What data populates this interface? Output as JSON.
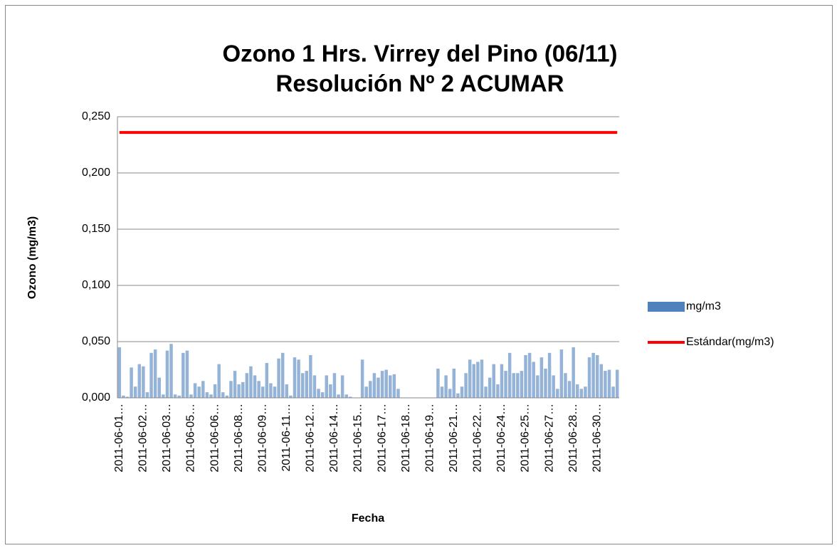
{
  "chart_data": {
    "type": "bar",
    "title": [
      "Ozono 1 Hrs. Virrey del Pino  (06/11)",
      "Resolución Nº 2 ACUMAR"
    ],
    "y_label": "Ozono (mg/m3)",
    "x_label": "Fecha",
    "categories": [
      "2011-06-01…",
      null,
      null,
      null,
      null,
      null,
      "2011-06-02…",
      null,
      null,
      null,
      null,
      null,
      "2011-06-03…",
      null,
      null,
      null,
      null,
      null,
      "2011-06-05…",
      null,
      null,
      null,
      null,
      null,
      "2011-06-06…",
      null,
      null,
      null,
      null,
      null,
      "2011-06-08…",
      null,
      null,
      null,
      null,
      null,
      "2011-06-09…",
      null,
      null,
      null,
      null,
      null,
      "2011-06-11…",
      null,
      null,
      null,
      null,
      null,
      "2011-06-12…",
      null,
      null,
      null,
      null,
      null,
      "2011-06-14…",
      null,
      null,
      null,
      null,
      null,
      "2011-06-15…",
      null,
      null,
      null,
      null,
      null,
      "2011-06-17…",
      null,
      null,
      null,
      null,
      null,
      "2011-06-18…",
      null,
      null,
      null,
      null,
      null,
      "2011-06-19…",
      null,
      null,
      null,
      null,
      null,
      "2011-06-21…",
      null,
      null,
      null,
      null,
      null,
      "2011-06-22…",
      null,
      null,
      null,
      null,
      null,
      "2011-06-24…",
      null,
      null,
      null,
      null,
      null,
      "2011-06-25…",
      null,
      null,
      null,
      null,
      null,
      "2011-06-27…",
      null,
      null,
      null,
      null,
      null,
      "2011-06-28…",
      null,
      null,
      null,
      null,
      null,
      "2011-06-30…",
      null,
      null,
      null,
      null,
      null
    ],
    "series": [
      {
        "name": "mg/m3",
        "type": "bar",
        "color": "#95b3d7",
        "legend_color": "#4f81bd",
        "values": [
          0.045,
          0.002,
          0.001,
          0.027,
          0.01,
          0.03,
          0.028,
          0.005,
          0.04,
          0.043,
          0.018,
          0.003,
          0.042,
          0.048,
          0.003,
          0.002,
          0.04,
          0.042,
          0.003,
          0.013,
          0.01,
          0.015,
          0.005,
          0.003,
          0.012,
          0.03,
          0.005,
          0.002,
          0.015,
          0.024,
          0.012,
          0.014,
          0.022,
          0.028,
          0.02,
          0.015,
          0.01,
          0.031,
          0.013,
          0.01,
          0.035,
          0.04,
          0.012,
          0.002,
          0.036,
          0.034,
          0.022,
          0.024,
          0.038,
          0.02,
          0.008,
          0.005,
          0.02,
          0.012,
          0.022,
          0.003,
          0.02,
          0.003,
          0.001,
          0,
          0,
          0.034,
          0.01,
          0.015,
          0.022,
          0.018,
          0.024,
          0.025,
          0.02,
          0.021,
          0.008,
          0,
          0,
          0,
          0,
          0,
          0,
          0,
          0,
          0,
          0.026,
          0.01,
          0.02,
          0.008,
          0.026,
          0.004,
          0.01,
          0.022,
          0.034,
          0.03,
          0.032,
          0.034,
          0.01,
          0.018,
          0.03,
          0.012,
          0.03,
          0.024,
          0.04,
          0.022,
          0.022,
          0.024,
          0.038,
          0.04,
          0.032,
          0.02,
          0.036,
          0.026,
          0.04,
          0.02,
          0.008,
          0.043,
          0.022,
          0.015,
          0.045,
          0.012,
          0.008,
          0.01,
          0.036,
          0.04,
          0.038,
          0.03,
          0.024,
          0.025,
          0.01,
          0.025
        ]
      },
      {
        "name": "Estándar(mg/m3)",
        "type": "line",
        "color": "#ff0000",
        "values": [
          0.236,
          0.236,
          0.236,
          0.236,
          0.236,
          0.236,
          0.236,
          0.236,
          0.236,
          0.236,
          0.236,
          0.236,
          0.236,
          0.236,
          0.236,
          0.236,
          0.236,
          0.236,
          0.236,
          0.236,
          0.236,
          0.236,
          0.236,
          0.236,
          0.236,
          0.236,
          0.236,
          0.236,
          0.236,
          0.236,
          0.236,
          0.236,
          0.236,
          0.236,
          0.236,
          0.236,
          0.236,
          0.236,
          0.236,
          0.236,
          0.236,
          0.236,
          0.236,
          0.236,
          0.236,
          0.236,
          0.236,
          0.236,
          0.236,
          0.236,
          0.236,
          0.236,
          0.236,
          0.236,
          0.236,
          0.236,
          0.236,
          0.236,
          0.236,
          0.236,
          0.236,
          0.236,
          0.236,
          0.236,
          0.236,
          0.236,
          0.236,
          0.236,
          0.236,
          0.236,
          0.236,
          0.236,
          0.236,
          0.236,
          0.236,
          0.236,
          0.236,
          0.236,
          0.236,
          0.236,
          0.236,
          0.236,
          0.236,
          0.236,
          0.236,
          0.236,
          0.236,
          0.236,
          0.236,
          0.236,
          0.236,
          0.236,
          0.236,
          0.236,
          0.236,
          0.236,
          0.236,
          0.236,
          0.236,
          0.236,
          0.236,
          0.236,
          0.236,
          0.236,
          0.236,
          0.236,
          0.236,
          0.236,
          0.236,
          0.236,
          0.236,
          0.236,
          0.236,
          0.236,
          0.236,
          0.236,
          0.236,
          0.236,
          0.236,
          0.236,
          0.236,
          0.236,
          0.236,
          0.236,
          0.236,
          0.236
        ]
      }
    ],
    "ylim": [
      0,
      0.25
    ],
    "yticks": [
      {
        "value": 0,
        "label": "0,000"
      },
      {
        "value": 0.05,
        "label": "0,050"
      },
      {
        "value": 0.1,
        "label": "0,100"
      },
      {
        "value": 0.15,
        "label": "0,150"
      },
      {
        "value": 0.2,
        "label": "0,200"
      },
      {
        "value": 0.25,
        "label": "0,250"
      }
    ],
    "grid": true,
    "legend": "right"
  }
}
